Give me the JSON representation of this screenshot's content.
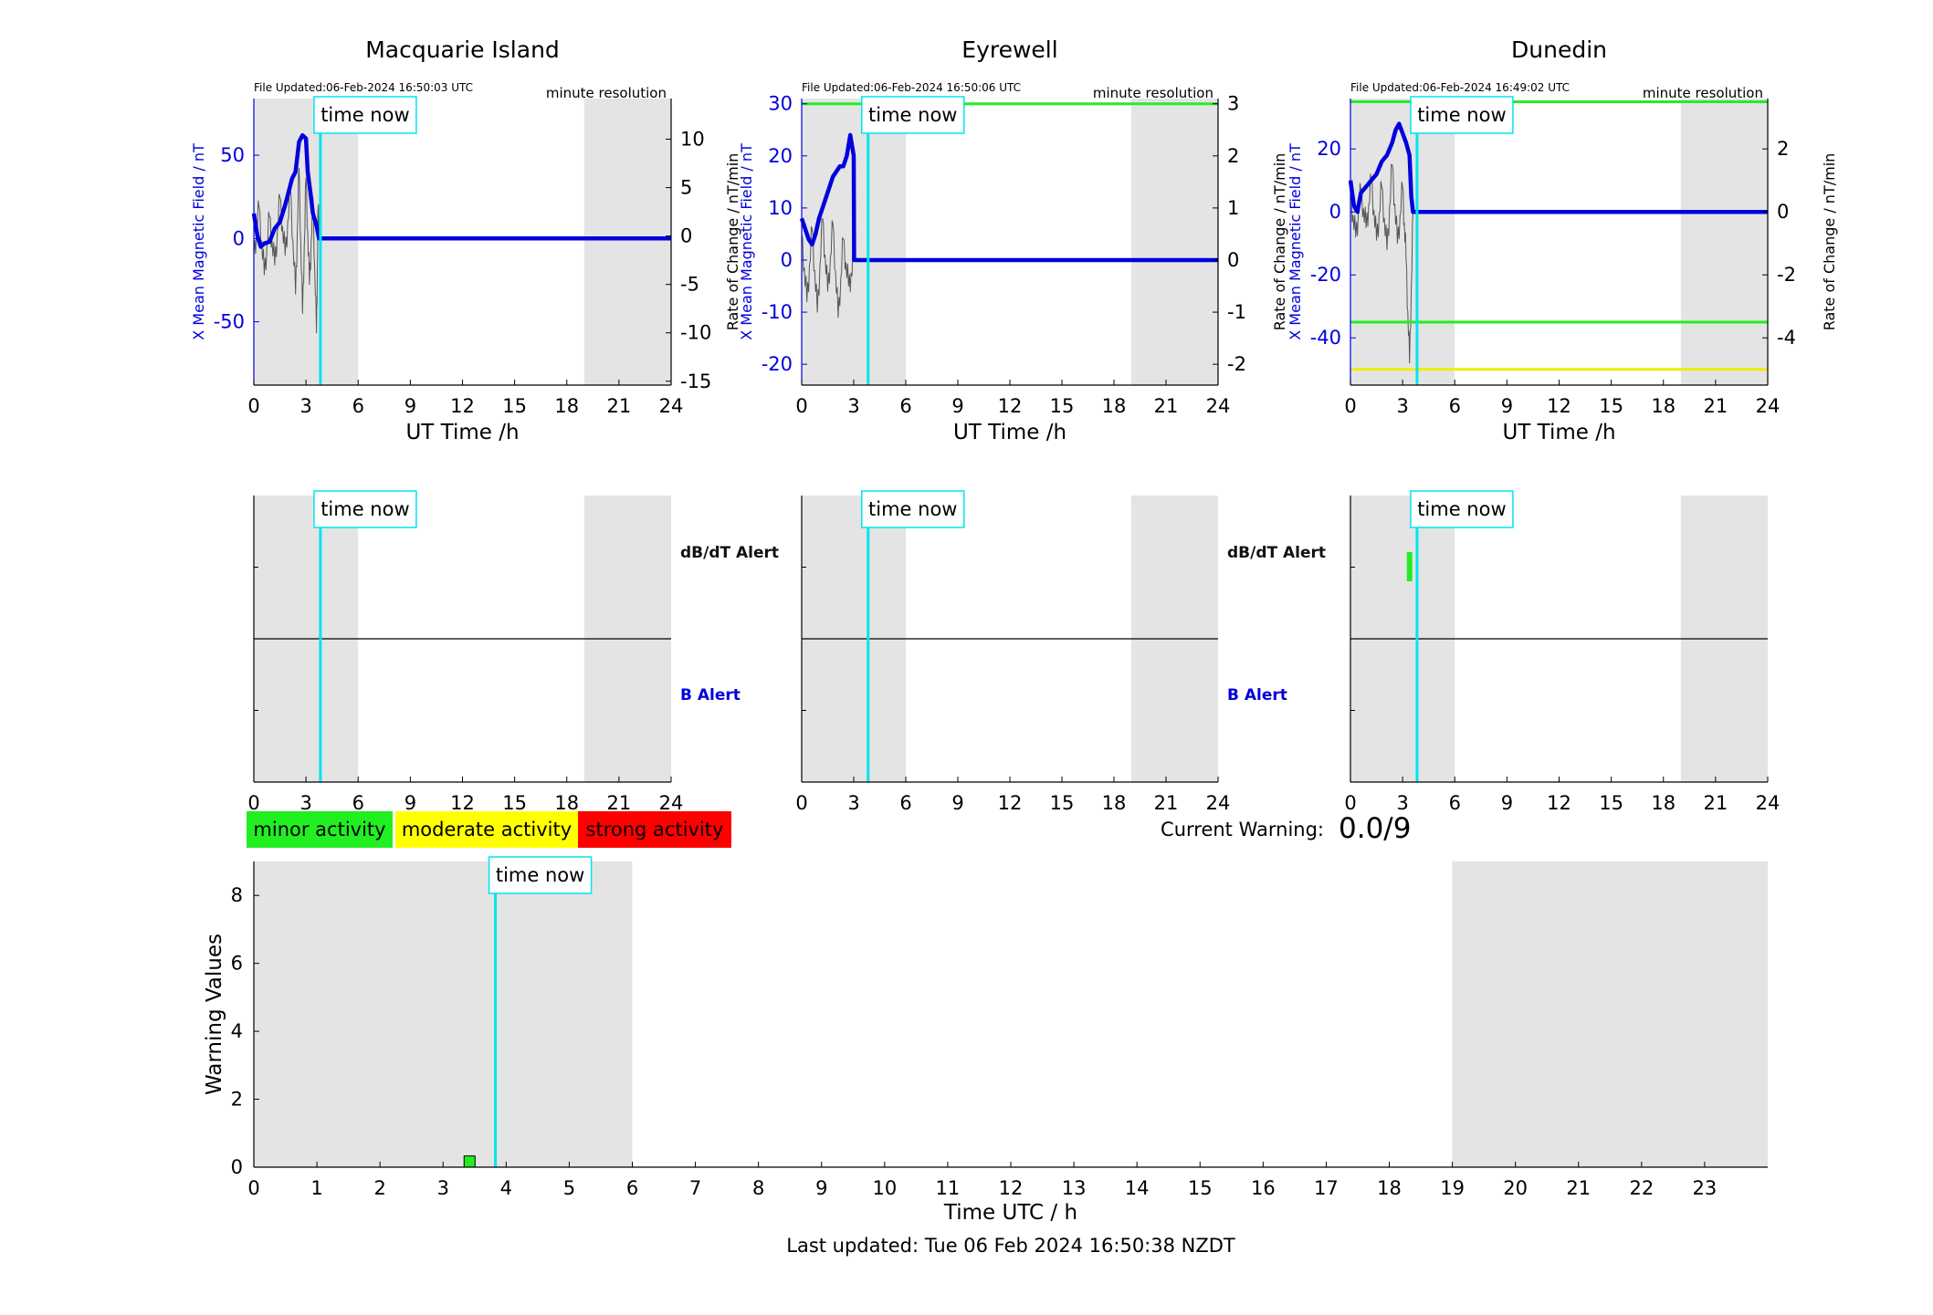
{
  "page": {
    "last_updated": "Last updated: Tue 06 Feb 2024 16:50:38 NZDT",
    "current_warning_label": "Current Warning:",
    "current_warning_value": "0.0/9",
    "time_now_label": "time now",
    "time_now_hours": 3.83
  },
  "colors": {
    "b_field": "#0000dd",
    "rate": "#555555",
    "time_now": "#00e5ee",
    "shade": "#e4e4e4",
    "threshold_green": "#22ee22",
    "threshold_yellow": "#eeee00",
    "legend_minor": "#22ee22",
    "legend_moderate": "#ffff00",
    "legend_strong": "#ff0000"
  },
  "legend": {
    "minor": "minor activity",
    "moderate": "moderate activity",
    "strong": "strong activity"
  },
  "chart_data": [
    {
      "type": "line",
      "title": "Macquarie Island",
      "file_updated": "File Updated:06-Feb-2024 16:50:03 UTC",
      "resolution": "minute resolution",
      "xlabel": "UT Time /h",
      "ylabel_left": "X Mean Magnetic Field / nT",
      "ylabel_right": "Rate of Change / nT/min",
      "xlim": [
        0,
        24
      ],
      "x_ticks": [
        0,
        3,
        6,
        9,
        12,
        15,
        18,
        21,
        24
      ],
      "ylim_left": [
        -88,
        84
      ],
      "ylim_right": [
        -15.4,
        14.2
      ],
      "y_ticks_left": [
        -50,
        0,
        50
      ],
      "y_ticks_right": [
        -15,
        -10,
        -5,
        0,
        5,
        10
      ],
      "shaded_hours": [
        [
          0,
          6
        ],
        [
          19,
          24
        ]
      ],
      "thresholds": [],
      "b_field": {
        "x": [
          0,
          0.2,
          0.4,
          0.6,
          0.9,
          1.2,
          1.5,
          1.8,
          2.0,
          2.2,
          2.4,
          2.6,
          2.8,
          3.0,
          3.1,
          3.25,
          3.4,
          3.6,
          3.75,
          3.83,
          24
        ],
        "y": [
          15,
          2,
          -5,
          -3,
          -2,
          6,
          10,
          20,
          28,
          36,
          40,
          58,
          62,
          60,
          40,
          28,
          15,
          8,
          0,
          0,
          0
        ]
      },
      "rate_of_change": {
        "x": [
          0,
          0.3,
          0.6,
          0.9,
          1.2,
          1.5,
          1.8,
          2.1,
          2.4,
          2.6,
          2.8,
          3.0,
          3.2,
          3.4,
          3.6,
          3.7,
          3.8
        ],
        "y": [
          -2,
          3,
          -4,
          2,
          -3,
          4,
          -2,
          5,
          -6,
          7,
          -8,
          6,
          -5,
          4,
          -10,
          3,
          0
        ]
      },
      "alerts": {
        "dbdt": [],
        "b": []
      }
    },
    {
      "type": "line",
      "title": "Eyrewell",
      "file_updated": "File Updated:06-Feb-2024 16:50:06 UTC",
      "resolution": "minute resolution",
      "xlabel": "UT Time /h",
      "ylabel_left": "X Mean Magnetic Field / nT",
      "ylabel_right": "Rate of Change / nT/min",
      "xlim": [
        0,
        24
      ],
      "x_ticks": [
        0,
        3,
        6,
        9,
        12,
        15,
        18,
        21,
        24
      ],
      "ylim_left": [
        -24,
        31
      ],
      "ylim_right": [
        -2.4,
        3.1
      ],
      "y_ticks_left": [
        -20,
        -10,
        0,
        10,
        20,
        30
      ],
      "y_ticks_right": [
        -2,
        -1,
        0,
        1,
        2,
        3
      ],
      "shaded_hours": [
        [
          0,
          6
        ],
        [
          19,
          24
        ]
      ],
      "thresholds": [
        {
          "value": 30,
          "color": "threshold_green"
        }
      ],
      "b_field": {
        "x": [
          0,
          0.2,
          0.4,
          0.6,
          0.8,
          1.0,
          1.2,
          1.4,
          1.6,
          1.8,
          2.0,
          2.2,
          2.4,
          2.6,
          2.8,
          2.9,
          3.0,
          3.02,
          3.83,
          24
        ],
        "y": [
          8,
          6,
          4,
          3,
          5,
          8,
          10,
          12,
          14,
          16,
          17,
          18,
          18,
          20,
          24,
          22,
          20,
          0,
          0,
          0
        ]
      },
      "rate_of_change": {
        "x": [
          0,
          0.3,
          0.6,
          0.9,
          1.2,
          1.5,
          1.8,
          2.1,
          2.4,
          2.7,
          3.0
        ],
        "y": [
          0.5,
          -0.8,
          0.6,
          -1.0,
          0.8,
          -0.6,
          0.7,
          -1.1,
          0.4,
          -0.5,
          0
        ]
      },
      "alerts": {
        "dbdt": [],
        "b": []
      }
    },
    {
      "type": "line",
      "title": "Dunedin",
      "file_updated": "File Updated:06-Feb-2024 16:49:02 UTC",
      "resolution": "minute resolution",
      "xlabel": "UT Time /h",
      "ylabel_left": "X Mean Magnetic Field / nT",
      "ylabel_right": "Rate of Change / nT/min",
      "xlim": [
        0,
        24
      ],
      "x_ticks": [
        0,
        3,
        6,
        9,
        12,
        15,
        18,
        21,
        24
      ],
      "ylim_left": [
        -55,
        36
      ],
      "ylim_right": [
        -5.5,
        3.6
      ],
      "y_ticks_left": [
        -40,
        -20,
        0,
        20
      ],
      "y_ticks_right": [
        -4,
        -2,
        0,
        2
      ],
      "shaded_hours": [
        [
          0,
          6
        ],
        [
          19,
          24
        ]
      ],
      "thresholds": [
        {
          "value": 35,
          "color": "threshold_green"
        },
        {
          "value": -35,
          "color": "threshold_green"
        },
        {
          "value": -50,
          "color": "threshold_yellow"
        }
      ],
      "b_field": {
        "x": [
          0,
          0.2,
          0.4,
          0.6,
          0.9,
          1.2,
          1.5,
          1.8,
          2.1,
          2.4,
          2.6,
          2.8,
          3.0,
          3.2,
          3.4,
          3.5,
          3.6,
          3.83,
          24
        ],
        "y": [
          10,
          2,
          0,
          6,
          8,
          10,
          12,
          16,
          18,
          22,
          26,
          28,
          25,
          22,
          18,
          5,
          0,
          0,
          0
        ]
      },
      "rate_of_change": {
        "x": [
          0,
          0.3,
          0.6,
          0.9,
          1.2,
          1.5,
          1.8,
          2.1,
          2.4,
          2.7,
          3.0,
          3.2,
          3.4,
          3.6
        ],
        "y": [
          0.6,
          -0.8,
          0.7,
          -0.5,
          1.0,
          -0.9,
          0.8,
          -1.2,
          1.5,
          -1.0,
          0.8,
          -1.5,
          -4.8,
          0
        ]
      },
      "alerts": {
        "dbdt": [
          {
            "hour": 3.4,
            "color": "threshold_green"
          }
        ],
        "b": []
      }
    },
    {
      "type": "bar",
      "title": "",
      "xlabel": "Time UTC / h",
      "ylabel": "Warning Values",
      "xlim": [
        0,
        24
      ],
      "ylim": [
        0,
        9
      ],
      "x_ticks": [
        0,
        1,
        2,
        3,
        4,
        5,
        6,
        7,
        8,
        9,
        10,
        11,
        12,
        13,
        14,
        15,
        16,
        17,
        18,
        19,
        20,
        21,
        22,
        23
      ],
      "y_ticks": [
        0,
        2,
        4,
        6,
        8
      ],
      "shaded_hours": [
        [
          0,
          6
        ],
        [
          19,
          24
        ]
      ],
      "x": [
        3.42
      ],
      "values": [
        0.33
      ],
      "bar_color": "threshold_green"
    }
  ],
  "alert_labels": {
    "dbdt": "dB/dT Alert",
    "b": "B Alert"
  }
}
